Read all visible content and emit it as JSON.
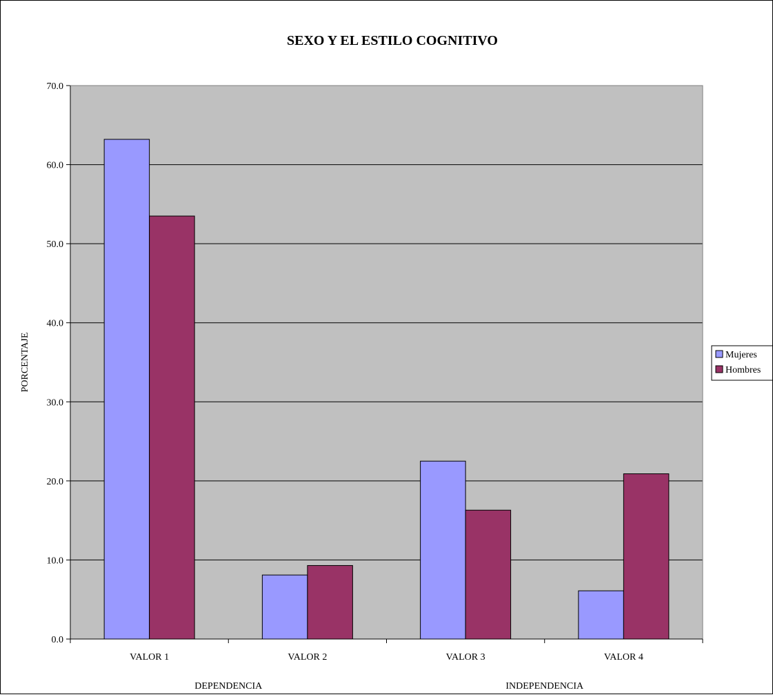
{
  "chart_data": {
    "type": "bar",
    "title": "SEXO Y EL ESTILO COGNITIVO",
    "ylabel": "PORCENTAJE",
    "xlabel": "",
    "categories": [
      "VALOR 1",
      "VALOR 2",
      "VALOR 3",
      "VALOR 4"
    ],
    "group_labels": [
      "DEPENDENCIA",
      "INDEPENDENCIA"
    ],
    "series": [
      {
        "name": "Mujeres",
        "color": "#9999ff",
        "values": [
          63.2,
          8.1,
          22.5,
          6.1
        ]
      },
      {
        "name": "Hombres",
        "color": "#993366",
        "values": [
          53.5,
          9.3,
          16.3,
          20.9
        ]
      }
    ],
    "ylim": [
      0,
      70
    ],
    "yticks": [
      "0.0",
      "10.0",
      "20.0",
      "30.0",
      "40.0",
      "50.0",
      "60.0",
      "70.0"
    ],
    "grid": true,
    "plot_background": "#c0c0c0",
    "legend_position": "right"
  }
}
